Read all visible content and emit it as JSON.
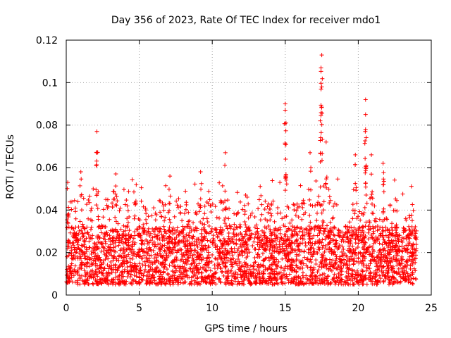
{
  "chart_data": {
    "type": "scatter",
    "title": "Day 356 of 2023, Rate Of TEC Index for receiver mdo1",
    "xlabel": "GPS time / hours",
    "ylabel": "ROTI / TECUs",
    "xlim": [
      0,
      25
    ],
    "ylim": [
      0,
      0.12
    ],
    "xticks": [
      0,
      5,
      10,
      15,
      20,
      25
    ],
    "xtick_labels": [
      "0",
      "5",
      "10",
      "15",
      "20",
      "25"
    ],
    "yticks": [
      0,
      0.02,
      0.04,
      0.06,
      0.08,
      0.1,
      0.12
    ],
    "ytick_labels": [
      "0",
      "0.02",
      "0.04",
      "0.06",
      "0.08",
      "0.1",
      "0.12"
    ],
    "grid": true,
    "marker": "+",
    "color": "#ff0000",
    "x_range_of_data": [
      0,
      24
    ],
    "bulk_band": [
      0.005,
      0.03
    ],
    "notable_peaks": [
      {
        "x": 0.1,
        "y": 0.053
      },
      {
        "x": 1.0,
        "y": 0.058
      },
      {
        "x": 2.1,
        "y": 0.077
      },
      {
        "x": 2.1,
        "y": 0.067
      },
      {
        "x": 3.4,
        "y": 0.057
      },
      {
        "x": 7.1,
        "y": 0.056
      },
      {
        "x": 9.2,
        "y": 0.058
      },
      {
        "x": 10.9,
        "y": 0.067
      },
      {
        "x": 15.0,
        "y": 0.09
      },
      {
        "x": 15.0,
        "y": 0.087
      },
      {
        "x": 15.05,
        "y": 0.081
      },
      {
        "x": 16.7,
        "y": 0.067
      },
      {
        "x": 17.5,
        "y": 0.113
      },
      {
        "x": 17.45,
        "y": 0.107
      },
      {
        "x": 17.5,
        "y": 0.098
      },
      {
        "x": 17.4,
        "y": 0.082
      },
      {
        "x": 17.8,
        "y": 0.072
      },
      {
        "x": 19.8,
        "y": 0.066
      },
      {
        "x": 20.5,
        "y": 0.092
      },
      {
        "x": 20.5,
        "y": 0.085
      },
      {
        "x": 20.5,
        "y": 0.078
      },
      {
        "x": 20.9,
        "y": 0.066
      },
      {
        "x": 21.7,
        "y": 0.062
      }
    ]
  }
}
